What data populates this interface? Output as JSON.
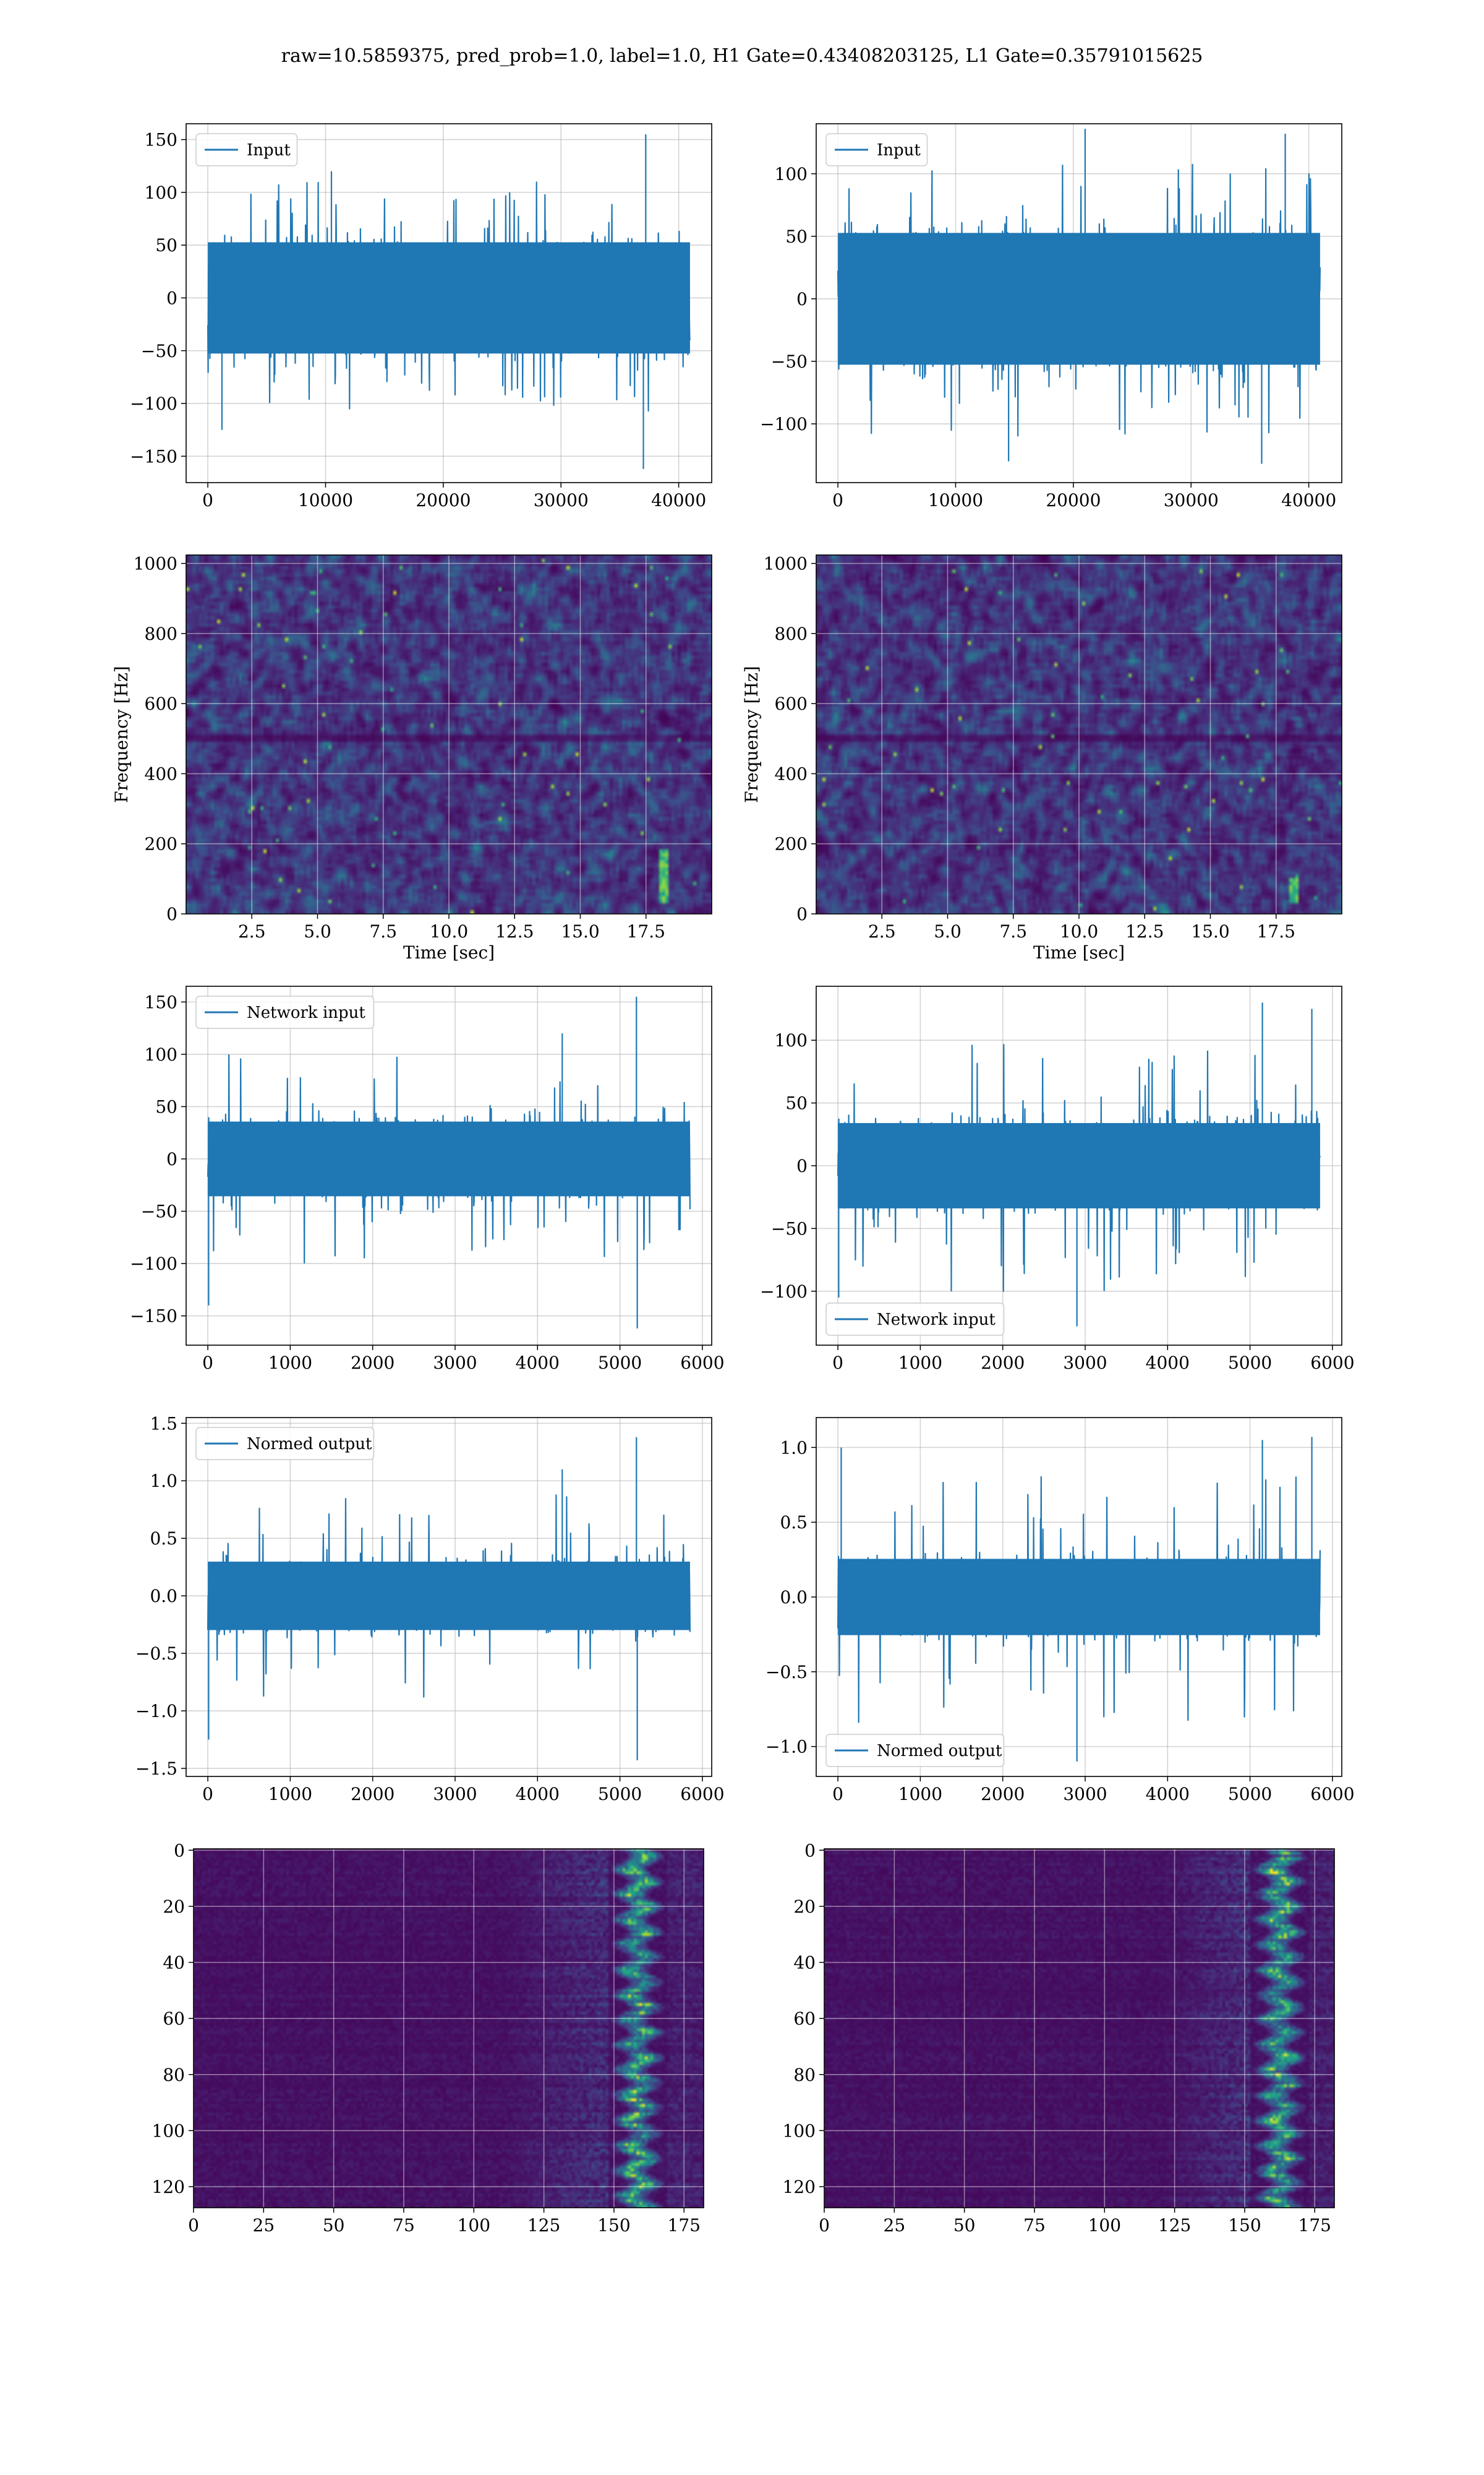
{
  "figure": {
    "title": "raw=10.5859375, pred_prob=1.0, label=1.0, H1 Gate=0.43408203125, L1 Gate=0.35791015625",
    "colors": {
      "line": "#1f77b4",
      "viridis_dark": "#440154",
      "grid": "#b0b0b0"
    }
  },
  "chart_data": [
    {
      "id": "h1-input",
      "type": "line",
      "legend": "Input",
      "legend_loc": "upper-left",
      "x_range": [
        0,
        40960
      ],
      "ylim": [
        -175,
        165
      ],
      "grid": true,
      "xticks": [
        0,
        10000,
        20000,
        30000,
        40000
      ],
      "xtick_labels": [
        "0",
        "10000",
        "20000",
        "30000",
        "40000"
      ],
      "yticks": [
        -150,
        -100,
        -50,
        0,
        50,
        100,
        150
      ],
      "ytick_labels": [
        "−150",
        "−100",
        "−50",
        "0",
        "50",
        "100",
        "150"
      ],
      "envelope": {
        "p90": 62,
        "max": 110,
        "min": -110
      },
      "spikes": [
        {
          "x": 37200,
          "y": 155
        },
        {
          "x": 37000,
          "y": -162
        },
        {
          "x": 1200,
          "y": -125
        },
        {
          "x": 10500,
          "y": 120
        }
      ]
    },
    {
      "id": "l1-input",
      "type": "line",
      "legend": "Input",
      "legend_loc": "upper-left",
      "x_range": [
        0,
        40960
      ],
      "ylim": [
        -147,
        140
      ],
      "grid": true,
      "xticks": [
        0,
        10000,
        20000,
        30000,
        40000
      ],
      "xtick_labels": [
        "0",
        "10000",
        "20000",
        "30000",
        "40000"
      ],
      "yticks": [
        -100,
        -50,
        0,
        50,
        100
      ],
      "ytick_labels": [
        "−100",
        "−50",
        "0",
        "50",
        "100"
      ],
      "envelope": {
        "p90": 62,
        "max": 110,
        "min": -110
      },
      "spikes": [
        {
          "x": 21000,
          "y": 136
        },
        {
          "x": 14500,
          "y": -130
        },
        {
          "x": 38000,
          "y": 132
        },
        {
          "x": 36000,
          "y": -132
        }
      ]
    },
    {
      "id": "h1-spectrogram",
      "type": "heatmap",
      "colormap": "viridis",
      "xlim": [
        0,
        20
      ],
      "ylim": [
        0,
        1024
      ],
      "grid": true,
      "xlabel": "Time [sec]",
      "ylabel": "Frequency [Hz]",
      "xticks": [
        2.5,
        5.0,
        7.5,
        10.0,
        12.5,
        15.0,
        17.5
      ],
      "xtick_labels": [
        "2.5",
        "5.0",
        "7.5",
        "10.0",
        "12.5",
        "15.0",
        "17.5"
      ],
      "yticks": [
        0,
        200,
        400,
        600,
        800,
        1000
      ],
      "ytick_labels": [
        "0",
        "200",
        "400",
        "600",
        "800",
        "1000"
      ],
      "dark_band_hz": 500,
      "chirp": {
        "t": 18.2,
        "f_min": 30,
        "f_max": 180
      }
    },
    {
      "id": "l1-spectrogram",
      "type": "heatmap",
      "colormap": "viridis",
      "xlim": [
        0,
        20
      ],
      "ylim": [
        0,
        1024
      ],
      "grid": true,
      "xlabel": "Time [sec]",
      "ylabel": "Frequency [Hz]",
      "xticks": [
        2.5,
        5.0,
        7.5,
        10.0,
        12.5,
        15.0,
        17.5
      ],
      "xtick_labels": [
        "2.5",
        "5.0",
        "7.5",
        "10.0",
        "12.5",
        "15.0",
        "17.5"
      ],
      "yticks": [
        0,
        200,
        400,
        600,
        800,
        1000
      ],
      "ytick_labels": [
        "0",
        "200",
        "400",
        "600",
        "800",
        "1000"
      ],
      "dark_band_hz": 500,
      "chirp": {
        "t": 18.2,
        "f_min": 30,
        "f_max": 100
      }
    },
    {
      "id": "h1-network-input",
      "type": "line",
      "legend": "Network input",
      "legend_loc": "upper-left",
      "x_range": [
        0,
        5850
      ],
      "ylim": [
        -178,
        165
      ],
      "grid": true,
      "xticks": [
        0,
        1000,
        2000,
        3000,
        4000,
        5000,
        6000
      ],
      "xtick_labels": [
        "0",
        "1000",
        "2000",
        "3000",
        "4000",
        "5000",
        "6000"
      ],
      "yticks": [
        -150,
        -100,
        -50,
        0,
        50,
        100,
        150
      ],
      "ytick_labels": [
        "−150",
        "−100",
        "−50",
        "0",
        "50",
        "100",
        "150"
      ],
      "envelope": {
        "p90": 42,
        "max": 100,
        "min": -100
      },
      "spikes": [
        {
          "x": 5200,
          "y": 155
        },
        {
          "x": 5210,
          "y": -162
        },
        {
          "x": 10,
          "y": -140
        },
        {
          "x": 4300,
          "y": 120
        }
      ]
    },
    {
      "id": "l1-network-input",
      "type": "line",
      "legend": "Network input",
      "legend_loc": "lower-left",
      "x_range": [
        0,
        5850
      ],
      "ylim": [
        -143,
        143
      ],
      "grid": true,
      "xticks": [
        0,
        1000,
        2000,
        3000,
        4000,
        5000,
        6000
      ],
      "xtick_labels": [
        "0",
        "1000",
        "2000",
        "3000",
        "4000",
        "5000",
        "6000"
      ],
      "yticks": [
        -100,
        -50,
        0,
        50,
        100
      ],
      "ytick_labels": [
        "−100",
        "−50",
        "0",
        "50",
        "100"
      ],
      "envelope": {
        "p90": 40,
        "max": 100,
        "min": -100
      },
      "spikes": [
        {
          "x": 2900,
          "y": -128
        },
        {
          "x": 5750,
          "y": 125
        },
        {
          "x": 5150,
          "y": 130
        },
        {
          "x": 10,
          "y": -105
        }
      ]
    },
    {
      "id": "h1-normed-output",
      "type": "line",
      "legend": "Normed output",
      "legend_loc": "upper-left",
      "x_range": [
        0,
        5850
      ],
      "ylim": [
        -1.57,
        1.55
      ],
      "grid": true,
      "xticks": [
        0,
        1000,
        2000,
        3000,
        4000,
        5000,
        6000
      ],
      "xtick_labels": [
        "0",
        "1000",
        "2000",
        "3000",
        "4000",
        "5000",
        "6000"
      ],
      "yticks": [
        -1.5,
        -1.0,
        -0.5,
        0.0,
        0.5,
        1.0,
        1.5
      ],
      "ytick_labels": [
        "−1.5",
        "−1.0",
        "−0.5",
        "0.0",
        "0.5",
        "1.0",
        "1.5"
      ],
      "envelope": {
        "p90": 0.35,
        "max": 0.9,
        "min": -0.9
      },
      "spikes": [
        {
          "x": 5200,
          "y": 1.38
        },
        {
          "x": 5210,
          "y": -1.43
        },
        {
          "x": 10,
          "y": -1.25
        },
        {
          "x": 4300,
          "y": 1.1
        }
      ]
    },
    {
      "id": "l1-normed-output",
      "type": "line",
      "legend": "Normed output",
      "legend_loc": "lower-left",
      "x_range": [
        0,
        5850
      ],
      "ylim": [
        -1.2,
        1.2
      ],
      "grid": true,
      "xticks": [
        0,
        1000,
        2000,
        3000,
        4000,
        5000,
        6000
      ],
      "xtick_labels": [
        "0",
        "1000",
        "2000",
        "3000",
        "4000",
        "5000",
        "6000"
      ],
      "yticks": [
        -1.0,
        -0.5,
        0.0,
        0.5,
        1.0
      ],
      "ytick_labels": [
        "−1.0",
        "−0.5",
        "0.0",
        "0.5",
        "1.0"
      ],
      "envelope": {
        "p90": 0.3,
        "max": 0.85,
        "min": -0.85
      },
      "spikes": [
        {
          "x": 2900,
          "y": -1.1
        },
        {
          "x": 5750,
          "y": 1.07
        },
        {
          "x": 40,
          "y": 1.0
        },
        {
          "x": 5150,
          "y": 1.05
        }
      ]
    },
    {
      "id": "h1-feature-map",
      "type": "heatmap",
      "colormap": "viridis",
      "xlim": [
        0,
        182
      ],
      "ylim": [
        127.5,
        -0.5
      ],
      "grid": true,
      "xticks": [
        0,
        25,
        50,
        75,
        100,
        125,
        150,
        175
      ],
      "xtick_labels": [
        "0",
        "25",
        "50",
        "75",
        "100",
        "125",
        "150",
        "175"
      ],
      "yticks": [
        0,
        20,
        40,
        60,
        80,
        100,
        120
      ],
      "ytick_labels": [
        "0",
        "20",
        "40",
        "60",
        "80",
        "100",
        "120"
      ],
      "rows": 128,
      "cols": 182,
      "hot_col_range": [
        148,
        168
      ],
      "ramp_start_col": 110
    },
    {
      "id": "l1-feature-map",
      "type": "heatmap",
      "colormap": "viridis",
      "xlim": [
        0,
        182
      ],
      "ylim": [
        127.5,
        -0.5
      ],
      "grid": true,
      "xticks": [
        0,
        25,
        50,
        75,
        100,
        125,
        150,
        175
      ],
      "xtick_labels": [
        "0",
        "25",
        "50",
        "75",
        "100",
        "125",
        "150",
        "175"
      ],
      "yticks": [
        0,
        20,
        40,
        60,
        80,
        100,
        120
      ],
      "ytick_labels": [
        "0",
        "20",
        "40",
        "60",
        "80",
        "100",
        "120"
      ],
      "rows": 128,
      "cols": 182,
      "hot_col_range": [
        152,
        172
      ],
      "ramp_start_col": 120
    }
  ]
}
